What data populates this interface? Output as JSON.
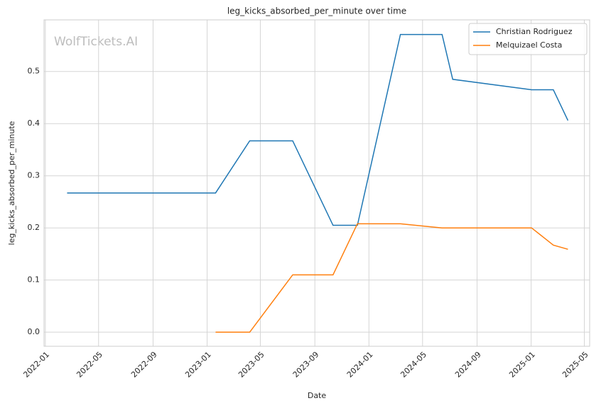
{
  "chart_data": {
    "type": "line",
    "title": "leg_kicks_absorbed_per_minute over time",
    "xlabel": "Date",
    "ylabel": "leg_kicks_absorbed_per_minute",
    "watermark": "WolfTickets.AI",
    "series": [
      {
        "name": "Christian Rodriguez",
        "color": "#1f77b4",
        "x": [
          "2022-02-19",
          "2023-01-20",
          "2023-04-07",
          "2023-07-13",
          "2023-10-12",
          "2023-12-06",
          "2024-03-12",
          "2024-06-14",
          "2024-07-08",
          "2025-01-02",
          "2025-02-20",
          "2025-03-25"
        ],
        "values": [
          0.267,
          0.267,
          0.367,
          0.367,
          0.205,
          0.205,
          0.571,
          0.571,
          0.485,
          0.465,
          0.465,
          0.406
        ]
      },
      {
        "name": "Melquizael Costa",
        "color": "#ff7f0e",
        "x": [
          "2023-01-20",
          "2023-04-07",
          "2023-07-13",
          "2023-10-12",
          "2023-12-06",
          "2024-03-12",
          "2024-06-14",
          "2025-01-02",
          "2025-02-20",
          "2025-03-25"
        ],
        "values": [
          0.0,
          0.0,
          0.11,
          0.11,
          0.208,
          0.208,
          0.2,
          0.2,
          0.167,
          0.159
        ]
      }
    ],
    "xlim": [
      "2021-12-29",
      "2025-05-13"
    ],
    "xticks": [
      "2022-01",
      "2022-05",
      "2022-09",
      "2023-01",
      "2023-05",
      "2023-09",
      "2024-01",
      "2024-05",
      "2024-09",
      "2025-01",
      "2025-05"
    ],
    "ylim": [
      -0.027,
      0.599
    ],
    "yticks": [
      {
        "value": 0,
        "label": "0.0"
      },
      0.1,
      0.2,
      0.3,
      0.4,
      0.5
    ],
    "grid": true,
    "legend": "upper right"
  }
}
